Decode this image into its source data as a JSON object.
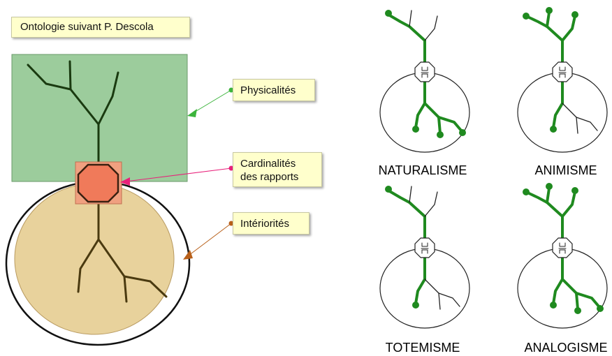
{
  "title": "Ontologie suivant P. Descola",
  "labels": {
    "physicalite": "Physicalités",
    "cardinalite_line1": "Cardinalités",
    "cardinalite_line2": "des rapports",
    "interiorite": "Intériorités"
  },
  "ontologies": [
    {
      "name": "NATURALISME"
    },
    {
      "name": "ANIMISME"
    },
    {
      "name": "TOTEMISME"
    },
    {
      "name": "ANALOGISME"
    }
  ],
  "colors": {
    "physicalite_fill": "#9ccc9c",
    "interiorite_fill": "#e8d29c",
    "cardinalite_fill": "#f08a6a",
    "branch_green": "#1f8a1f",
    "branch_dark": "#1a2a10",
    "arrow_phys": "#3cb43c",
    "arrow_card": "#e8207a",
    "arrow_int": "#b8601a"
  }
}
